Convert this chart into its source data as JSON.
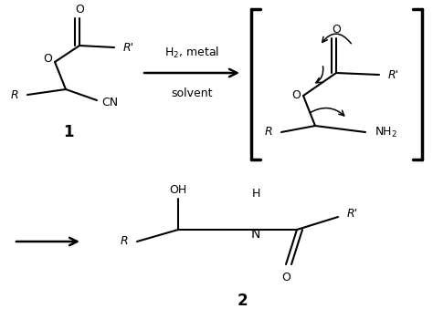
{
  "background_color": "#ffffff",
  "figure_width": 4.74,
  "figure_height": 3.5,
  "dpi": 100,
  "compound1_label": "1",
  "compound2_label": "2",
  "arrow_label_top": "H$_2$, metal",
  "arrow_label_bottom": "solvent",
  "text_color": "#000000"
}
